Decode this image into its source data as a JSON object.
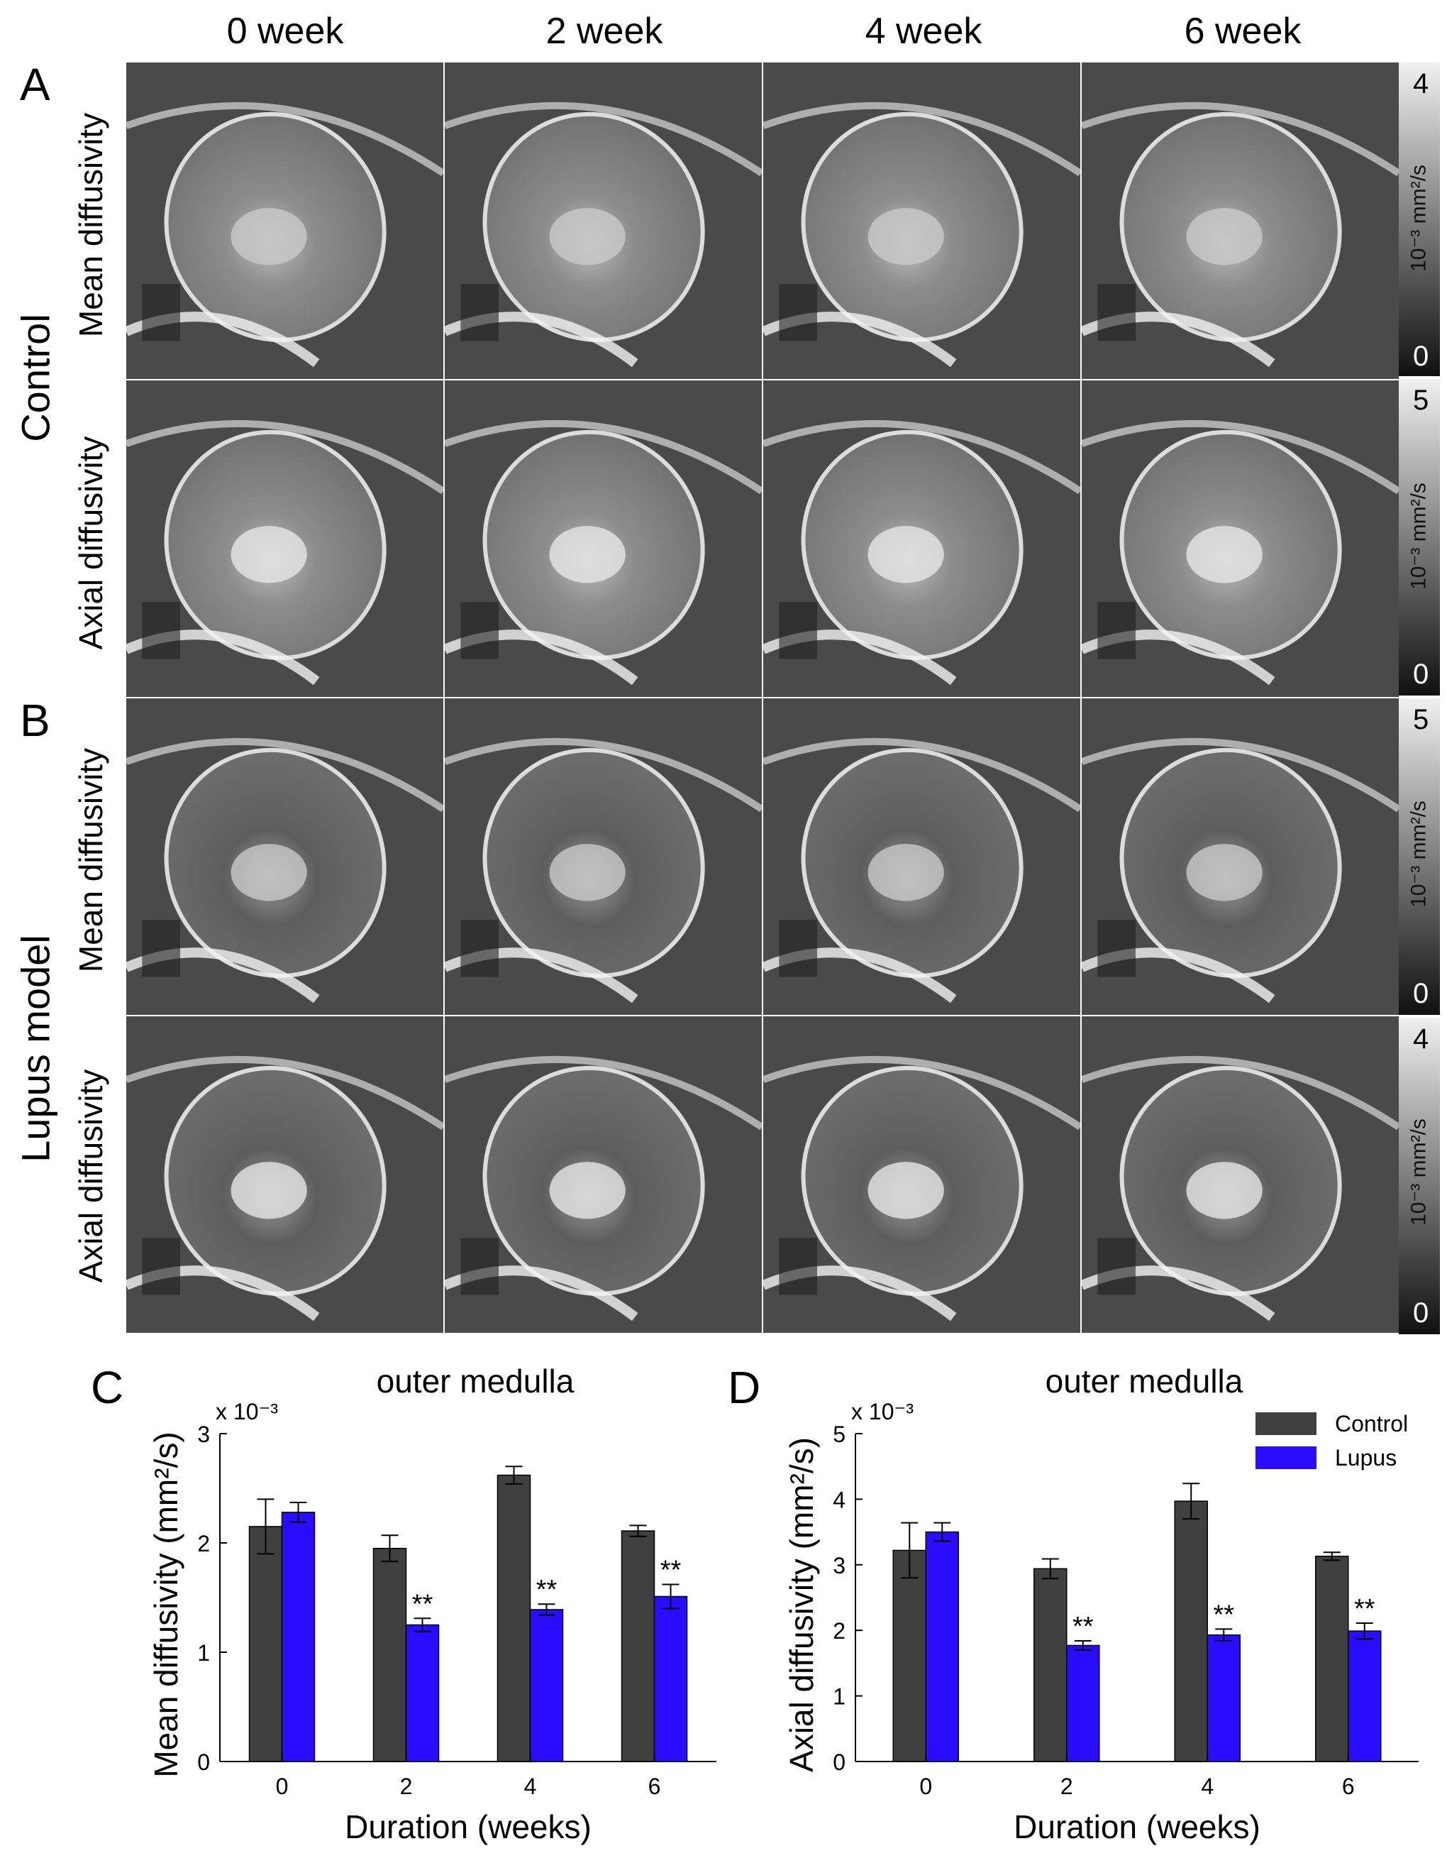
{
  "columns": [
    "0 week",
    "2 week",
    "4 week",
    "6 week"
  ],
  "panels": {
    "A": {
      "letter": "A",
      "group": "Control"
    },
    "B": {
      "letter": "B",
      "group": "Lupus model"
    }
  },
  "rows": [
    {
      "label": "Mean diffusivity",
      "cbar": {
        "max": "4",
        "min": "0",
        "unit": "10⁻³ mm²/s"
      }
    },
    {
      "label": "Axial diffusivity",
      "cbar": {
        "max": "5",
        "min": "0",
        "unit": "10⁻³ mm²/s"
      }
    },
    {
      "label": "Mean diffusivity",
      "cbar": {
        "max": "5",
        "min": "0",
        "unit": "10⁻³ mm²/s"
      }
    },
    {
      "label": "Axial diffusivity",
      "cbar": {
        "max": "4",
        "min": "0",
        "unit": "10⁻³ mm²/s"
      }
    }
  ],
  "chart_data": [
    {
      "panel": "C",
      "type": "bar",
      "title": "outer medulla",
      "xlabel": "Duration (weeks)",
      "ylabel": "Mean diffusivity (mm²/s)",
      "y_multiplier": "x 10⁻³",
      "categories": [
        "0",
        "2",
        "4",
        "6"
      ],
      "ylim": [
        0,
        3
      ],
      "yticks": [
        0,
        1,
        2,
        3
      ],
      "series": [
        {
          "name": "Control",
          "color": "#404040",
          "values": [
            2.15,
            1.95,
            2.62,
            2.11
          ],
          "errors": [
            0.25,
            0.12,
            0.08,
            0.05
          ]
        },
        {
          "name": "Lupus",
          "color": "#2a0cff",
          "values": [
            2.28,
            1.25,
            1.39,
            1.51
          ],
          "errors": [
            0.09,
            0.06,
            0.05,
            0.11
          ]
        }
      ],
      "annotations": [
        "",
        "**",
        "**",
        "**"
      ]
    },
    {
      "panel": "D",
      "type": "bar",
      "title": "outer medulla",
      "xlabel": "Duration (weeks)",
      "ylabel": "Axial diffusivity (mm²/s)",
      "y_multiplier": "x 10⁻³",
      "categories": [
        "0",
        "2",
        "4",
        "6"
      ],
      "ylim": [
        0,
        5
      ],
      "yticks": [
        0,
        1,
        2,
        3,
        4,
        5
      ],
      "legend_position": "top-right",
      "series": [
        {
          "name": "Control",
          "color": "#404040",
          "values": [
            3.22,
            2.94,
            3.97,
            3.13
          ],
          "errors": [
            0.42,
            0.15,
            0.27,
            0.06
          ]
        },
        {
          "name": "Lupus",
          "color": "#2a0cff",
          "values": [
            3.5,
            1.77,
            1.93,
            1.99
          ],
          "errors": [
            0.14,
            0.07,
            0.09,
            0.12
          ]
        }
      ],
      "annotations": [
        "",
        "**",
        "**",
        "**"
      ]
    }
  ]
}
